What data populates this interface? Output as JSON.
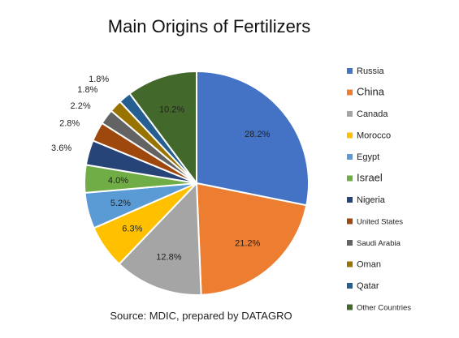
{
  "chart_data": {
    "type": "pie",
    "title": "Main Origins of Fertilizers",
    "source": "Source: MDIC, prepared by DATAGRO",
    "legend_position": "right",
    "slices": [
      {
        "name": "Russia",
        "value": 28.2,
        "label": "28.2%",
        "color": "#4472C4"
      },
      {
        "name": "China",
        "value": 21.2,
        "label": "21.2%",
        "color": "#ED7D31"
      },
      {
        "name": "Canada",
        "value": 12.8,
        "label": "12.8%",
        "color": "#A5A5A5"
      },
      {
        "name": "Morocco",
        "value": 6.3,
        "label": "6.3%",
        "color": "#FFC000"
      },
      {
        "name": "Egypt",
        "value": 5.2,
        "label": "5.2%",
        "color": "#5B9BD5"
      },
      {
        "name": "Israel",
        "value": 4.0,
        "label": "4.0%",
        "color": "#70AD47"
      },
      {
        "name": "Nigeria",
        "value": 3.6,
        "label": "3.6%",
        "color": "#264478"
      },
      {
        "name": "United States",
        "value": 2.8,
        "label": "2.8%",
        "color": "#9E480E"
      },
      {
        "name": "Saudi Arabia",
        "value": 2.2,
        "label": "2.2%",
        "color": "#636363"
      },
      {
        "name": "Oman",
        "value": 1.8,
        "label": "1.8%",
        "color": "#997300"
      },
      {
        "name": "Qatar",
        "value": 1.8,
        "label": "1.8%",
        "color": "#255E91"
      },
      {
        "name": "Other Countries",
        "value": 10.2,
        "label": "10.2%",
        "color": "#43682B"
      }
    ]
  }
}
